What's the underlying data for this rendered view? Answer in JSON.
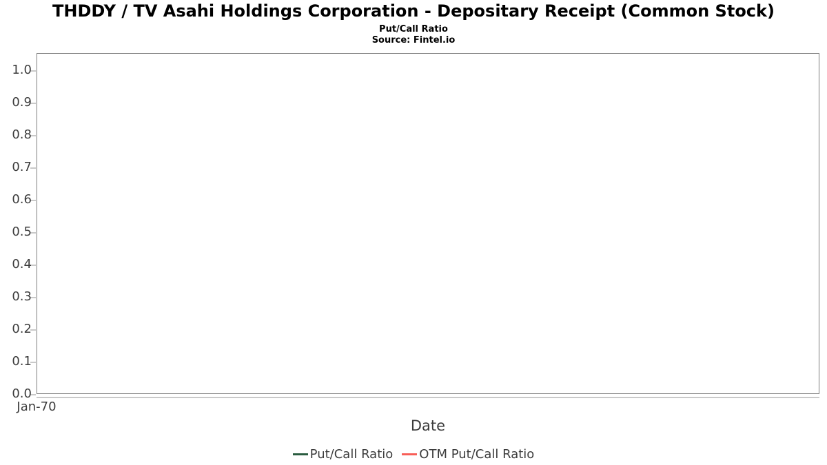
{
  "header": {
    "title": "THDDY / TV Asahi Holdings Corporation - Depositary Receipt (Common Stock)",
    "subtitle": "Put/Call Ratio",
    "source": "Source: Fintel.io"
  },
  "chart_data": {
    "type": "line",
    "title": "THDDY / TV Asahi Holdings Corporation - Depositary Receipt (Common Stock)",
    "subtitle": "Put/Call Ratio",
    "source": "Source: Fintel.io",
    "xlabel": "Date",
    "ylabel": "",
    "x_tick_labels": [
      "Jan-70"
    ],
    "y_tick_labels": [
      "0.0",
      "0.1",
      "0.2",
      "0.3",
      "0.4",
      "0.5",
      "0.6",
      "0.7",
      "0.8",
      "0.9",
      "1.0"
    ],
    "ylim": [
      0,
      1.05
    ],
    "grid": "horizontal",
    "legend_position": "bottom",
    "series": [
      {
        "name": "Put/Call Ratio",
        "color": "#2a5c40",
        "x": [],
        "values": []
      },
      {
        "name": "OTM Put/Call Ratio",
        "color": "#f85e57",
        "x": [],
        "values": []
      }
    ]
  },
  "colors": {
    "spine": "#7b7b7b",
    "gridline": "#e4e4e4",
    "tick": "#c9c9c9",
    "axis_text": "#3c3c3c",
    "title_text": "#000000",
    "background": "#ffffff"
  }
}
